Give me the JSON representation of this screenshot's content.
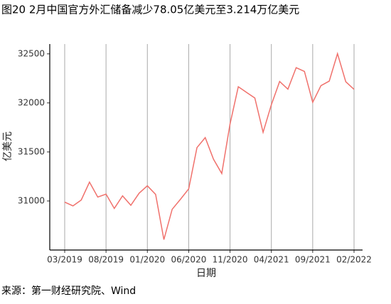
{
  "chart_data": {
    "type": "line",
    "title": "图20 2月中国官方外汇储备减少78.05亿美元至3.214万亿美元",
    "y_label": "亿美元",
    "x_label": "日期",
    "source": "来源：第一财经研究院、Wind",
    "categories": [
      "03/2019",
      null,
      null,
      null,
      null,
      "08/2019",
      null,
      null,
      null,
      null,
      "01/2020",
      null,
      null,
      null,
      null,
      "06/2020",
      null,
      null,
      null,
      null,
      "11/2020",
      null,
      null,
      null,
      null,
      "04/2021",
      null,
      null,
      null,
      null,
      "09/2021",
      null,
      null,
      null,
      null,
      "02/2022"
    ],
    "values": [
      30988,
      30950,
      31010,
      31192,
      31040,
      31070,
      30924,
      31052,
      30956,
      31079,
      31155,
      31067,
      30606,
      30915,
      31017,
      31123,
      31544,
      31646,
      31426,
      31280,
      31785,
      32165,
      32107,
      32050,
      31700,
      31982,
      32218,
      32140,
      32359,
      32321,
      32006,
      32176,
      32222,
      32502,
      32216,
      32138
    ],
    "color": "#f0716c",
    "ylim": [
      30500,
      32600
    ],
    "yticks": [
      31000,
      31500,
      32000,
      32500
    ],
    "grid": true
  }
}
